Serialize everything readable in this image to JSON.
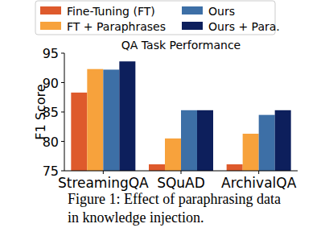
{
  "chart_data": {
    "type": "bar",
    "title": "QA Task Performance",
    "y_label": "F1 Score",
    "caption": [
      "Figure 1: Effect of paraphrasing data",
      "in knowledge injection."
    ],
    "categories": [
      "StreamingQA",
      "SQuAD",
      "ArchivalQA"
    ],
    "series": [
      {
        "name": "Fine-Tuning (FT)",
        "color": "#de5a2c",
        "values": [
          88.3,
          76.1,
          76.1
        ]
      },
      {
        "name": "FT + Paraphrases",
        "color": "#f7a23c",
        "values": [
          92.3,
          80.5,
          81.3
        ]
      },
      {
        "name": "Ours",
        "color": "#3d6fa6",
        "values": [
          92.2,
          85.3,
          84.5
        ]
      },
      {
        "name": "Ours + Para.",
        "color": "#0d1f5c",
        "values": [
          93.6,
          85.3,
          85.3
        ]
      }
    ],
    "ylim": [
      75,
      95
    ],
    "yticks": [
      75,
      80,
      85,
      90,
      95
    ],
    "grid": false,
    "legend": "top"
  }
}
